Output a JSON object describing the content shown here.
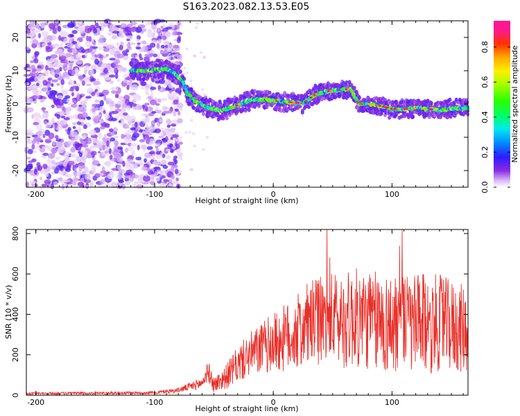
{
  "title": "S163.2023.082.13.53.E05",
  "colors": {
    "snr_line": "#e8302a",
    "axis": "#000000",
    "background": "#ffffff"
  },
  "colorbar": {
    "label": "Normalized spectral amplitude",
    "ticks": [
      "0.0",
      "0.2",
      "0.4",
      "0.6",
      "0.8"
    ],
    "tick_values": [
      0.0,
      0.2,
      0.4,
      0.6,
      0.8
    ],
    "range": [
      0,
      0.95
    ],
    "colormap": "gist_ncar-like (white → violet → blue → cyan → green → yellow → red → magenta)"
  },
  "chart_data": [
    {
      "type": "heatmap",
      "title": "S163.2023.082.13.53.E05",
      "xlabel": "Height of straight line (km)",
      "ylabel": "Frequency (Hz)",
      "xlim": [
        -208,
        164
      ],
      "ylim": [
        -25,
        25
      ],
      "xticks": [
        -200,
        -100,
        0,
        100
      ],
      "yticks": [
        -20,
        -10,
        0,
        10,
        20
      ],
      "noise_region_x": [
        -208,
        -78
      ],
      "signal_ridge": {
        "x": [
          -120,
          -105,
          -90,
          -82,
          -76,
          -72,
          -65,
          -55,
          -45,
          -35,
          -25,
          -15,
          -5,
          5,
          15,
          25,
          35,
          45,
          55,
          65,
          72,
          80,
          90,
          100,
          110,
          120,
          130,
          140,
          150,
          164
        ],
        "freq": [
          10,
          10,
          10.5,
          9,
          6.5,
          3,
          0.5,
          -1,
          -2,
          -1,
          0.5,
          1.5,
          1.2,
          0.8,
          0.5,
          0.2,
          2.8,
          3.8,
          4.2,
          4.5,
          0,
          0,
          -0.5,
          -1.5,
          -1.5,
          -1.2,
          -1.5,
          -1.8,
          -1.5,
          -1.2
        ]
      }
    },
    {
      "type": "line",
      "xlabel": "Height of straight line (km)",
      "ylabel": "SNR (10 * v/v)",
      "xlim": [
        -208,
        164
      ],
      "ylim": [
        0,
        820
      ],
      "xticks": [
        -200,
        -100,
        0,
        100
      ],
      "yticks": [
        0,
        200,
        400,
        600,
        800
      ],
      "series": [
        {
          "envelope_x": [
            -208,
            -100,
            -80,
            -60,
            -55,
            -50,
            -40,
            -30,
            -20,
            -10,
            0,
            10,
            20,
            30,
            40,
            50,
            60,
            70,
            80,
            90,
            100,
            110,
            120,
            130,
            140,
            150,
            164
          ],
          "envelope_mean": [
            8,
            12,
            25,
            60,
            120,
            50,
            90,
            150,
            200,
            230,
            260,
            280,
            310,
            350,
            370,
            380,
            370,
            380,
            370,
            360,
            350,
            360,
            340,
            350,
            360,
            340,
            320
          ],
          "envelope_spread": [
            6,
            8,
            12,
            30,
            50,
            40,
            60,
            90,
            110,
            130,
            150,
            170,
            190,
            210,
            220,
            230,
            240,
            250,
            250,
            250,
            250,
            250,
            260,
            250,
            240,
            230,
            220
          ]
        }
      ]
    }
  ]
}
